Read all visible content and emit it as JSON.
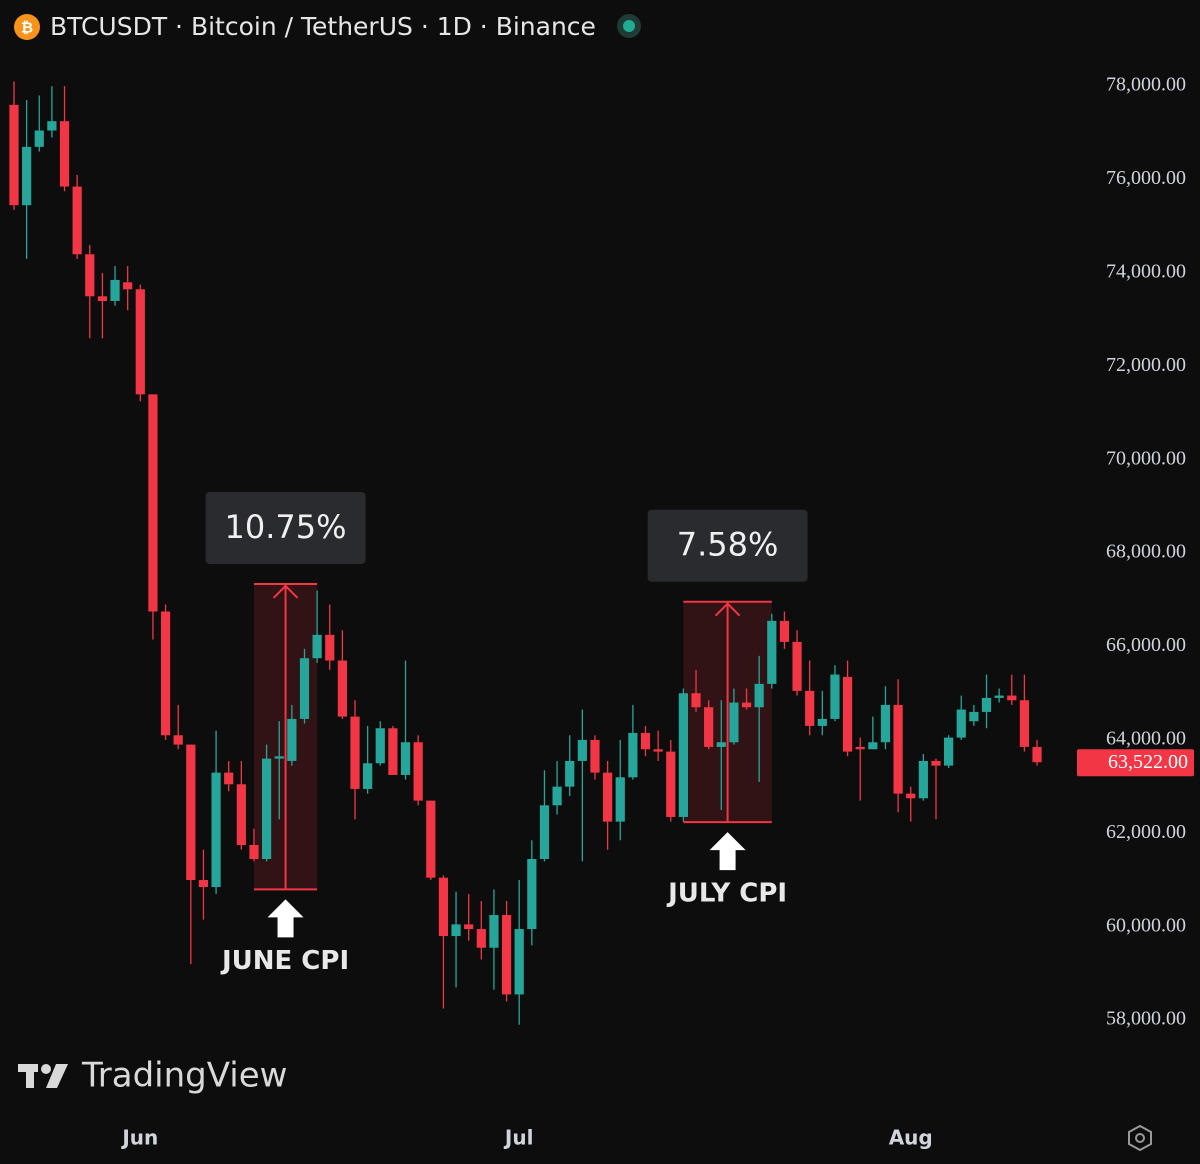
{
  "chart_data": {
    "type": "candlestick",
    "title": "BTCUSDT · Bitcoin / TetherUS · 1D · Binance",
    "watermark": "TradingView",
    "categories": [
      null,
      null,
      null,
      null,
      null,
      null,
      null,
      null,
      null,
      null,
      "Jun",
      null,
      null,
      null,
      null,
      null,
      null,
      null,
      null,
      null,
      null,
      null,
      null,
      null,
      null,
      null,
      null,
      null,
      null,
      null,
      null,
      null,
      null,
      null,
      null,
      null,
      null,
      null,
      null,
      null,
      "Jul",
      null,
      null,
      null,
      null,
      null,
      null,
      null,
      null,
      null,
      null,
      null,
      null,
      null,
      null,
      null,
      null,
      null,
      null,
      null,
      null,
      null,
      null,
      null,
      null,
      null,
      null,
      null,
      null,
      null,
      null,
      "Aug",
      null,
      null,
      null,
      null,
      null,
      null,
      null,
      null,
      null,
      null
    ],
    "open": [
      77600,
      75450,
      76700,
      77050,
      77250,
      75850,
      74400,
      73500,
      73400,
      73800,
      73650,
      71400,
      66750,
      64100,
      63900,
      61000,
      60850,
      63300,
      63050,
      61750,
      61450,
      63600,
      63550,
      64450,
      65750,
      66250,
      65700,
      64500,
      62950,
      63500,
      64250,
      63250,
      63950,
      62700,
      61050,
      59800,
      60050,
      59950,
      59550,
      60250,
      58550,
      59950,
      61450,
      62600,
      63000,
      63550,
      64000,
      63300,
      62250,
      63200,
      64150,
      63800,
      63750,
      62350,
      65000,
      64700,
      63850,
      63950,
      64800,
      64700,
      65200,
      66550,
      66100,
      65050,
      64300,
      64450,
      65350,
      63850,
      63800,
      63950,
      64750,
      62850,
      62750,
      63550,
      63450,
      64050,
      64400,
      64600,
      64900,
      64950,
      64850,
      63850
    ],
    "high": [
      78100,
      77700,
      77800,
      78000,
      78000,
      76100,
      74600,
      74000,
      74150,
      74150,
      73750,
      71400,
      66900,
      64750,
      63900,
      61650,
      64200,
      63550,
      63550,
      62100,
      63900,
      64400,
      64750,
      65950,
      67200,
      66900,
      66350,
      64850,
      64300,
      64400,
      64300,
      65700,
      64100,
      62700,
      61100,
      60750,
      60700,
      60550,
      60800,
      60550,
      61000,
      61850,
      63350,
      63550,
      64100,
      64650,
      64100,
      63550,
      64000,
      64750,
      64300,
      64200,
      64000,
      65100,
      65500,
      64850,
      64850,
      65100,
      65100,
      65800,
      66700,
      66750,
      66350,
      65700,
      65050,
      65600,
      65700,
      64050,
      64500,
      65150,
      65300,
      63000,
      63700,
      63600,
      64100,
      64950,
      64750,
      65400,
      65100,
      65400,
      65400,
      64000
    ],
    "low": [
      75350,
      74300,
      76600,
      76900,
      75750,
      74300,
      72600,
      72600,
      73300,
      73200,
      71250,
      66150,
      64000,
      63800,
      59200,
      60150,
      60700,
      62900,
      61650,
      61400,
      61400,
      62300,
      63450,
      64350,
      65650,
      65500,
      64450,
      62300,
      62850,
      63450,
      63250,
      63150,
      62600,
      61000,
      58250,
      58700,
      59700,
      59300,
      58650,
      58400,
      57900,
      59600,
      61400,
      62400,
      62800,
      61400,
      63150,
      61650,
      61850,
      63150,
      63650,
      63550,
      62250,
      62250,
      64600,
      63800,
      62500,
      63900,
      64650,
      63100,
      65100,
      65950,
      64950,
      64100,
      64100,
      64400,
      63650,
      62700,
      63800,
      63800,
      62450,
      62250,
      62700,
      62300,
      63400,
      64000,
      64300,
      64250,
      64800,
      64750,
      63750,
      63450
    ],
    "close": [
      75450,
      76700,
      77050,
      77250,
      75850,
      74400,
      73500,
      73400,
      73850,
      73650,
      71400,
      66750,
      64100,
      63900,
      61000,
      60850,
      63300,
      63050,
      61750,
      61450,
      63600,
      63650,
      64450,
      65750,
      66250,
      65700,
      64500,
      62950,
      63500,
      64250,
      63250,
      63950,
      62700,
      61050,
      59800,
      60050,
      59950,
      59550,
      60250,
      58550,
      59950,
      61450,
      62600,
      63000,
      63550,
      64000,
      63300,
      62250,
      63200,
      64150,
      63800,
      63750,
      62350,
      65000,
      64700,
      63850,
      63950,
      64800,
      64700,
      65200,
      66550,
      66100,
      65050,
      64300,
      64450,
      65400,
      63750,
      63800,
      63950,
      64750,
      62850,
      62750,
      63550,
      63450,
      64050,
      64650,
      64600,
      64900,
      64950,
      64850,
      63850,
      63522
    ],
    "up_color": "#26a69a",
    "down_color": "#f23645",
    "ylim": [
      57360,
      78560
    ],
    "yticks": [
      {
        "value": 58000,
        "label": "58,000.00"
      },
      {
        "value": 60000,
        "label": "60,000.00"
      },
      {
        "value": 62000,
        "label": "62,000.00"
      },
      {
        "value": 64000,
        "label": "64,000.00"
      },
      {
        "value": 66000,
        "label": "66,000.00"
      },
      {
        "value": 68000,
        "label": "68,000.00"
      },
      {
        "value": 70000,
        "label": "70,000.00"
      },
      {
        "value": 72000,
        "label": "72,000.00"
      },
      {
        "value": 74000,
        "label": "74,000.00"
      },
      {
        "value": 76000,
        "label": "76,000.00"
      },
      {
        "value": 78000,
        "label": "78,000.00"
      }
    ],
    "last_price": {
      "value": 63522,
      "label": "63,522.00"
    },
    "annotations": [
      {
        "label": "10.75%",
        "caption": "JUNE CPI",
        "from": 60800,
        "to": 67340,
        "x_from": 19,
        "x_to": 24
      },
      {
        "label": "7.58%",
        "caption": "JULY CPI",
        "from": 62240,
        "to": 66960,
        "x_from": 53,
        "x_to": 60
      }
    ]
  }
}
